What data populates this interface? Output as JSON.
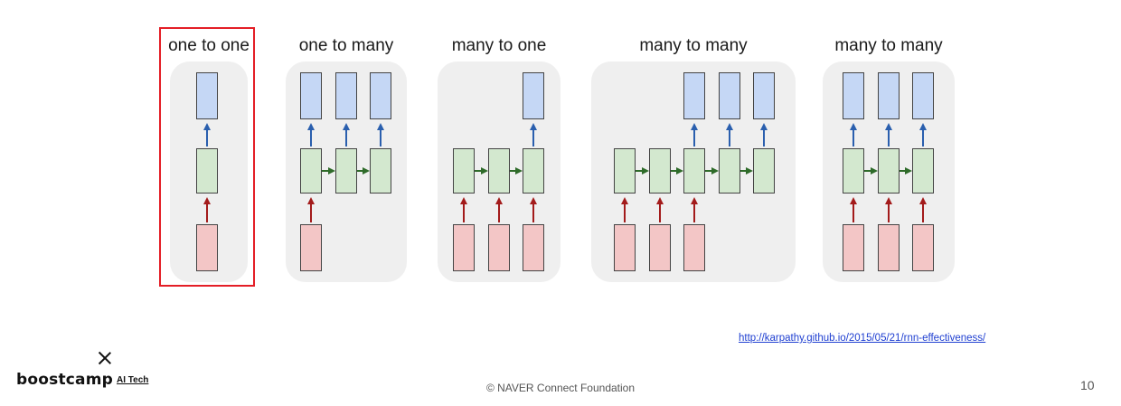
{
  "diagram": {
    "panels": [
      {
        "title": "one to one",
        "inputs": [
          0
        ],
        "hidden": [
          0
        ],
        "outputs": [
          0
        ],
        "recurrent": false
      },
      {
        "title": "one to many",
        "inputs": [
          0
        ],
        "hidden": [
          0,
          1,
          2
        ],
        "outputs": [
          0,
          1,
          2
        ],
        "recurrent": true
      },
      {
        "title": "many to one",
        "inputs": [
          0,
          1,
          2
        ],
        "hidden": [
          0,
          1,
          2
        ],
        "outputs": [
          2
        ],
        "recurrent": true
      },
      {
        "title": "many to many",
        "inputs": [
          0,
          1,
          2
        ],
        "hidden": [
          0,
          1,
          2,
          3,
          4
        ],
        "outputs": [
          2,
          3,
          4
        ],
        "recurrent": true
      },
      {
        "title": "many to many",
        "inputs": [
          0,
          1,
          2
        ],
        "hidden": [
          0,
          1,
          2
        ],
        "outputs": [
          0,
          1,
          2
        ],
        "recurrent": true
      }
    ],
    "highlighted_panel": 0,
    "colors": {
      "output": "#c5d7f5",
      "hidden": "#d3e8cf",
      "input": "#f3c6c6",
      "highlight": "#e41e26"
    }
  },
  "source": {
    "url_text": "http://karpathy.github.io/2015/05/21/rnn-effectiveness/"
  },
  "footer": {
    "logo_word": "boostcamp",
    "logo_sub": "AI Tech",
    "copyright": "© NAVER Connect Foundation",
    "page_number": "10"
  }
}
